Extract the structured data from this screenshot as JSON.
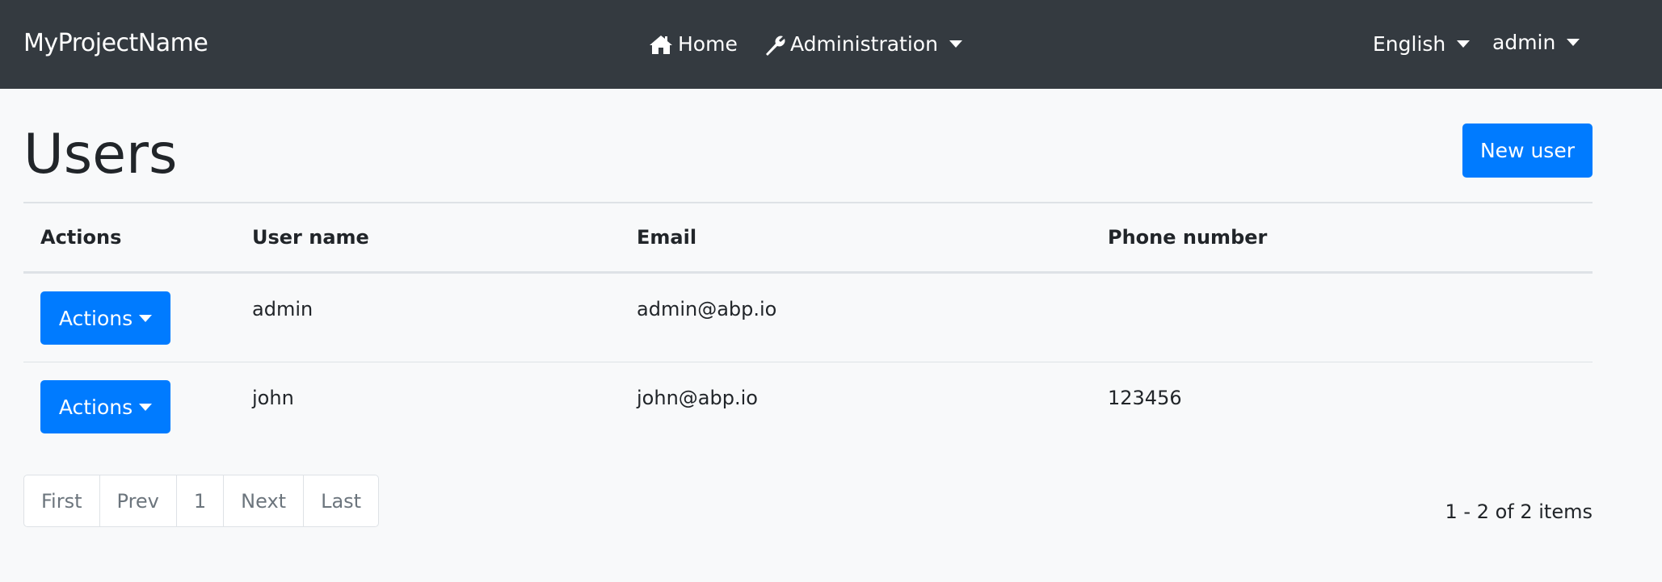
{
  "navbar": {
    "brand": "MyProjectName",
    "home": "Home",
    "administration": "Administration",
    "language": "English",
    "user": "admin"
  },
  "page": {
    "title": "Users",
    "new_user_label": "New user"
  },
  "table": {
    "headers": [
      "Actions",
      "User name",
      "Email",
      "Phone number"
    ],
    "rows": [
      {
        "action_label": "Actions",
        "username": "admin",
        "email": "admin@abp.io",
        "phone": ""
      },
      {
        "action_label": "Actions",
        "username": "john",
        "email": "john@abp.io",
        "phone": "123456"
      }
    ]
  },
  "pagination": {
    "first": "First",
    "prev": "Prev",
    "page": "1",
    "next": "Next",
    "last": "Last",
    "summary": "1 - 2 of 2 items"
  },
  "colors": {
    "navbar": "#343a40",
    "primary": "#007bff",
    "background": "#f8f9fa"
  }
}
